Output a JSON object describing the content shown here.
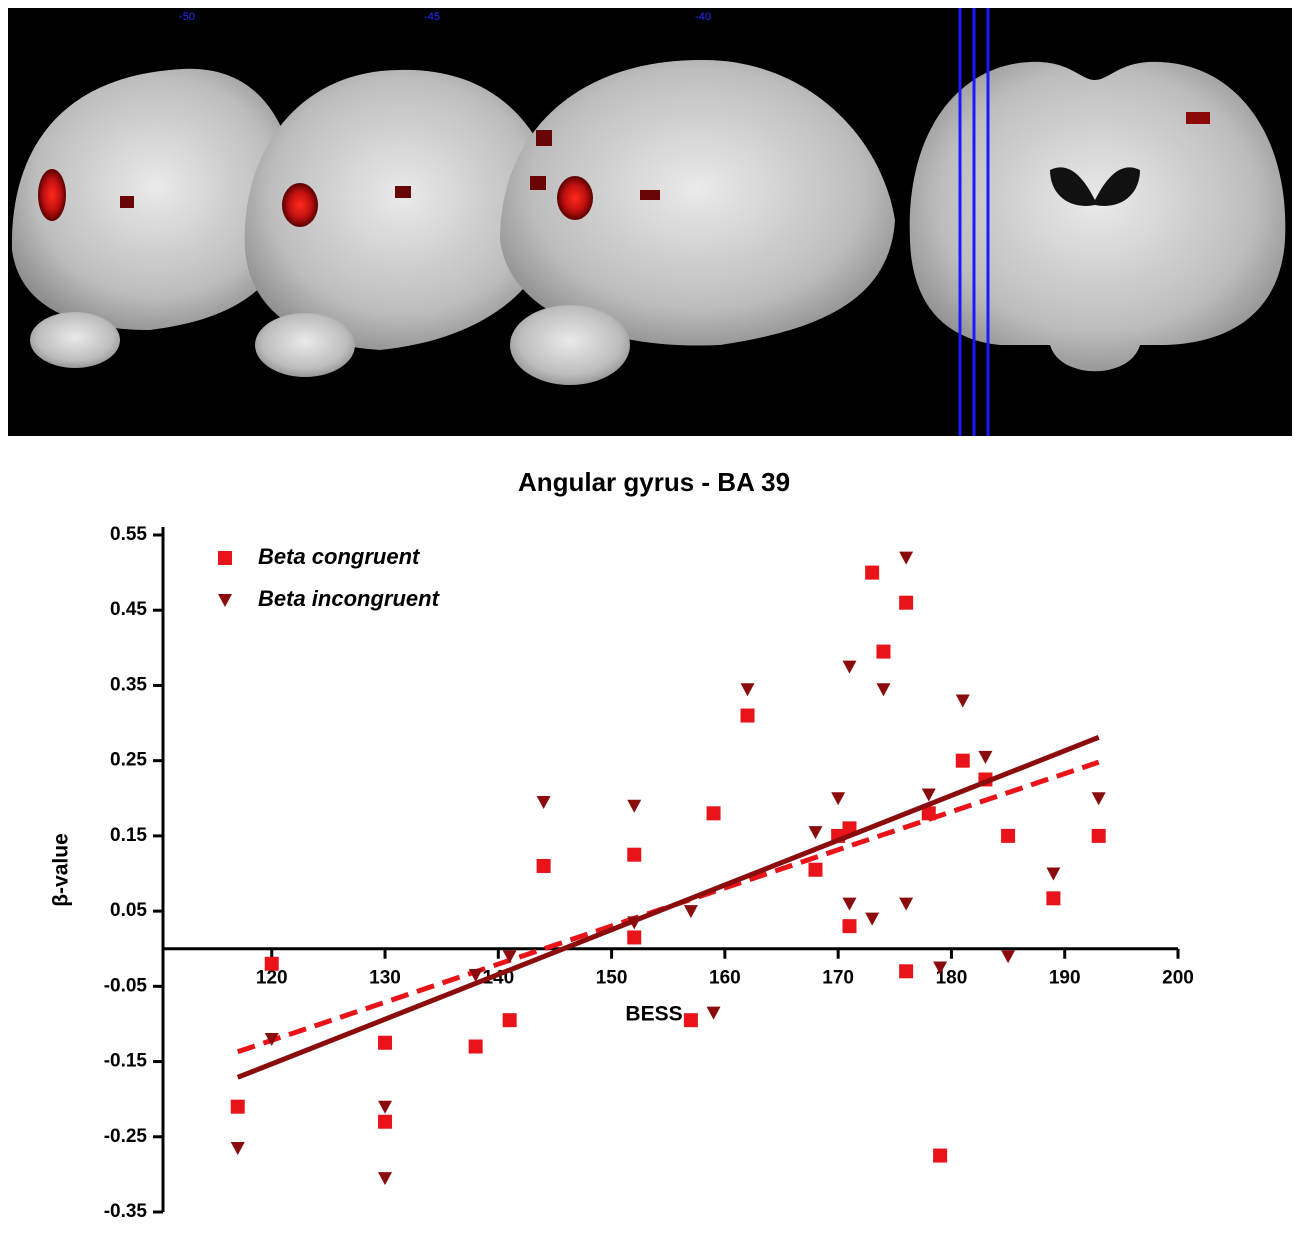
{
  "image_panel": {
    "slice_labels": [
      "-50",
      "-45",
      "-40"
    ]
  },
  "chart_data": {
    "type": "scatter",
    "title": "Angular gyrus - BA 39",
    "x_label": "BESS",
    "y_label": "β-value",
    "xlim": [
      110.4,
      200
    ],
    "xticks": [
      120,
      130,
      140,
      150,
      160,
      170,
      180,
      190,
      200
    ],
    "ylim": [
      -0.35,
      0.55
    ],
    "yticks": [
      -0.35,
      -0.25,
      -0.15,
      -0.05,
      0.05,
      0.15,
      0.25,
      0.35,
      0.45,
      0.55
    ],
    "legend": "upper left",
    "series": [
      {
        "name": "Beta congruent",
        "color": "#e8141a",
        "marker": "square",
        "line_style": "dashed",
        "x": [
          117,
          120,
          130,
          130,
          138,
          141,
          144,
          152,
          152,
          157,
          159,
          162,
          168,
          170,
          171,
          171,
          173,
          174,
          176,
          176,
          178,
          179,
          181,
          183,
          185,
          189,
          193
        ],
        "values": [
          -0.21,
          -0.02,
          -0.125,
          -0.23,
          -0.13,
          -0.095,
          0.11,
          0.125,
          0.015,
          -0.095,
          0.18,
          0.31,
          0.105,
          0.15,
          0.16,
          0.03,
          0.5,
          0.395,
          0.46,
          -0.03,
          0.18,
          -0.275,
          0.25,
          0.225,
          0.15,
          0.067,
          0.15
        ],
        "fit": {
          "x": [
            117,
            193
          ],
          "values": [
            -0.137,
            0.248
          ]
        }
      },
      {
        "name": "Beta incongruent",
        "color": "#8b0c0c",
        "marker": "triangle-down",
        "line_style": "solid",
        "x": [
          117,
          120,
          130,
          130,
          138,
          141,
          144,
          152,
          152,
          157,
          159,
          162,
          168,
          170,
          171,
          171,
          173,
          174,
          176,
          176,
          178,
          179,
          181,
          183,
          185,
          189,
          193
        ],
        "values": [
          -0.265,
          -0.12,
          -0.21,
          -0.305,
          -0.035,
          -0.01,
          0.195,
          0.19,
          0.035,
          0.05,
          -0.085,
          0.345,
          0.155,
          0.2,
          0.375,
          0.06,
          0.04,
          0.345,
          0.52,
          0.06,
          0.205,
          -0.025,
          0.33,
          0.255,
          -0.01,
          0.1,
          0.2
        ],
        "fit": {
          "x": [
            117,
            193
          ],
          "values": [
            -0.171,
            0.281
          ]
        }
      }
    ]
  }
}
